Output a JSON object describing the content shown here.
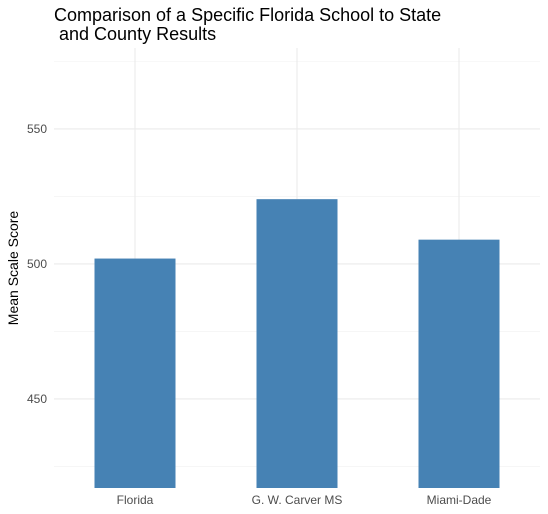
{
  "chart_data": {
    "type": "bar",
    "title_lines": [
      "Comparison of a Specific Florida School to State",
      " and County Results"
    ],
    "xlabel": "",
    "ylabel": "Mean Scale Score",
    "categories": [
      "Florida",
      "G. W. Carver MS",
      "Miami-Dade"
    ],
    "values": [
      502,
      524,
      509
    ],
    "ylim": [
      417,
      580
    ],
    "yticks": [
      450,
      500,
      550
    ],
    "yticks_minor": [
      425,
      475,
      525,
      575
    ],
    "bar_color": "#4682B4",
    "grid": true,
    "legend": "none"
  }
}
